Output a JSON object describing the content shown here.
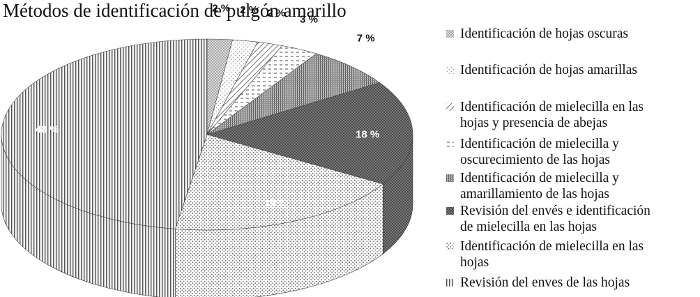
{
  "chart_data": {
    "type": "pie",
    "title": "Métodos de identificación de pulgón amarillo",
    "three_d": true,
    "legend_position": "right",
    "series": [
      {
        "label": "Identificación de hojas oscuras",
        "value": 2,
        "value_label": "2 %",
        "color": "#c8c8c8"
      },
      {
        "label": "Identificación de hojas amarillas",
        "value": 2,
        "value_label": "2 %",
        "color": "#ececec"
      },
      {
        "label": "Identificación de mielecilla en las\nhojas y presencia de abejas",
        "value": 2,
        "value_label": "2 %",
        "color": "#dddddd"
      },
      {
        "label": "Identificación de mielecilla y\noscurecimiento de las hojas",
        "value": 3,
        "value_label": "3 %",
        "color": "#e4e4e4"
      },
      {
        "label": "Identificación de mielecilla y\namarillamiento de las hojas",
        "value": 7,
        "value_label": "7 %",
        "color": "#9a9a9a"
      },
      {
        "label": "Revisión del envés e identificación\n de  mielecilla en las hojas",
        "value": 18,
        "value_label": "18 %",
        "color": "#5a5a5a"
      },
      {
        "label": "Identificación de mielecilla en las\nhojas",
        "value": 19,
        "value_label": "19%",
        "color": "#e8e8e8"
      },
      {
        "label": "Revisión del enves de las hojas",
        "value": 48,
        "value_label": "48 %",
        "color": "#d8d8d8"
      }
    ]
  }
}
